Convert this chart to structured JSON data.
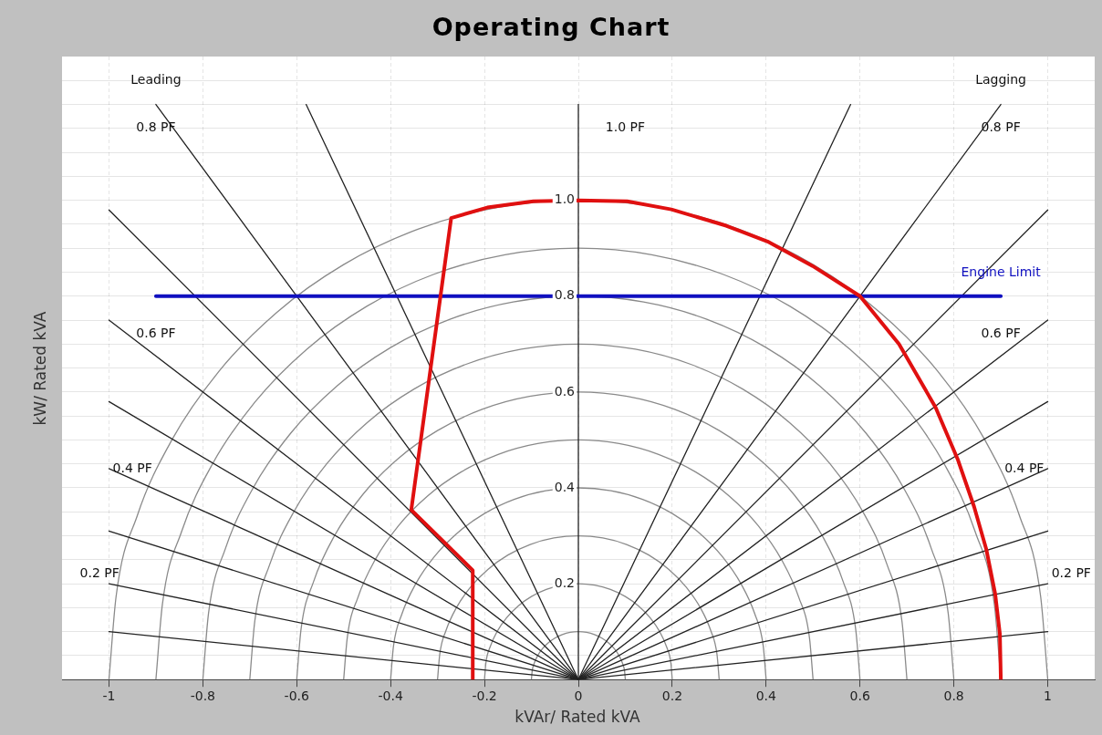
{
  "chart_data": {
    "type": "line",
    "title": "Operating Chart",
    "xlabel": "kVAr/ Rated kVA",
    "ylabel": "kW/ Rated kVA",
    "xlim": [
      -1.1,
      1.1
    ],
    "ylim": [
      0,
      1.3
    ],
    "xticks": [
      -1,
      -0.8,
      -0.6,
      -0.4,
      -0.2,
      0,
      0.2,
      0.4,
      0.6,
      0.8,
      1
    ],
    "yticks": [
      {
        "value": 0,
        "label": null
      },
      {
        "value": 0.05,
        "label": null
      },
      {
        "value": 0.1,
        "label": null
      },
      {
        "value": 0.15,
        "label": null
      },
      {
        "value": 0.2,
        "label": "0.2"
      },
      {
        "value": 0.25,
        "label": null
      },
      {
        "value": 0.3,
        "label": null
      },
      {
        "value": 0.35,
        "label": null
      },
      {
        "value": 0.4,
        "label": "0.4"
      },
      {
        "value": 0.45,
        "label": null
      },
      {
        "value": 0.5,
        "label": null
      },
      {
        "value": 0.55,
        "label": null
      },
      {
        "value": 0.6,
        "label": "0.6"
      },
      {
        "value": 0.65,
        "label": null
      },
      {
        "value": 0.7,
        "label": null
      },
      {
        "value": 0.75,
        "label": null
      },
      {
        "value": 0.8,
        "label": "0.8"
      },
      {
        "value": 0.85,
        "label": null
      },
      {
        "value": 0.9,
        "label": null
      },
      {
        "value": 0.95,
        "label": null
      },
      {
        "value": 1,
        "label": "1.0"
      },
      {
        "value": 1.05,
        "label": null
      },
      {
        "value": 1.1,
        "label": null
      },
      {
        "value": 1.15,
        "label": null
      },
      {
        "value": 1.2,
        "label": null
      },
      {
        "value": 1.25,
        "label": null
      }
    ],
    "grid": true,
    "legend": false,
    "marker": "none",
    "series": [
      {
        "color": "#e01010",
        "x": [
          -0.225,
          -0.225,
          -0.356,
          -0.271,
          -0.194,
          -0.096,
          0,
          0.104,
          0.198,
          0.315,
          0.403,
          0.499,
          0.6,
          0.683,
          0.761,
          0.808,
          0.843,
          0.869,
          0.888,
          0.898,
          0.9
        ],
        "values": [
          0,
          0.228,
          0.354,
          0.963,
          0.985,
          0.998,
          1,
          0.998,
          0.981,
          0.947,
          0.914,
          0.863,
          0.8,
          0.7,
          0.568,
          0.46,
          0.361,
          0.272,
          0.179,
          0.095,
          0
        ]
      },
      {
        "name": "Engine Limit",
        "color": "#1010c0",
        "x": [
          -0.9,
          0.9
        ],
        "values": [
          0.8,
          0.8
        ]
      },
      {
        "color": "#222222",
        "x": [
          -1,
          0,
          1
        ],
        "values": [
          0.1,
          0,
          0.1
        ]
      },
      {
        "color": "#222222",
        "x": [
          -1,
          0,
          1
        ],
        "values": [
          0.2,
          0,
          0.2
        ]
      },
      {
        "color": "#222222",
        "x": [
          -1,
          0,
          1
        ],
        "values": [
          0.31,
          0,
          0.31
        ]
      },
      {
        "color": "#222222",
        "x": [
          -1,
          0,
          1
        ],
        "values": [
          0.44,
          0,
          0.44
        ]
      },
      {
        "color": "#222222",
        "x": [
          -1,
          0,
          1
        ],
        "values": [
          0.58,
          0,
          0.58
        ]
      },
      {
        "color": "#222222",
        "x": [
          -1,
          0,
          1
        ],
        "values": [
          0.75,
          0,
          0.75
        ]
      },
      {
        "color": "#222222",
        "x": [
          -1,
          0,
          1
        ],
        "values": [
          0.98,
          0,
          0.98
        ]
      },
      {
        "color": "#222222",
        "x": [
          -0.9,
          0,
          0.9
        ],
        "values": [
          1.2,
          0,
          1.2
        ]
      },
      {
        "color": "#222222",
        "x": [
          -0.58,
          0,
          0.58
        ],
        "values": [
          1.2,
          0,
          1.2
        ]
      },
      {
        "color": "#222222",
        "x": [
          0,
          0
        ],
        "values": [
          0,
          1.2
        ]
      },
      {
        "color": "#8a8a8a",
        "x": [
          0.1,
          0.0985,
          0.094,
          0.0866,
          0.0766,
          0.0643,
          0.05,
          0.0342,
          0.0174,
          0,
          -0.0174,
          -0.0342,
          -0.05,
          -0.0643,
          -0.0766,
          -0.0866,
          -0.094,
          -0.0985,
          -0.1
        ],
        "values": [
          0,
          0.0174,
          0.0342,
          0.05,
          0.0643,
          0.0766,
          0.0866,
          0.094,
          0.0985,
          0.1,
          0.0985,
          0.094,
          0.0866,
          0.0766,
          0.0643,
          0.05,
          0.0342,
          0.0174,
          0
        ]
      },
      {
        "color": "#8a8a8a",
        "x": [
          0.2,
          0.197,
          0.1879,
          0.1732,
          0.1532,
          0.1286,
          0.1,
          0.0684,
          0.0347,
          0,
          -0.0347,
          -0.0684,
          -0.1,
          -0.1286,
          -0.1532,
          -0.1732,
          -0.1879,
          -0.197,
          -0.2
        ],
        "values": [
          0,
          0.0347,
          0.0684,
          0.1,
          0.1286,
          0.1532,
          0.1732,
          0.1879,
          0.197,
          0.2,
          0.197,
          0.1879,
          0.1732,
          0.1532,
          0.1286,
          0.1,
          0.0684,
          0.0347,
          0
        ]
      },
      {
        "color": "#8a8a8a",
        "x": [
          0.3,
          0.2954,
          0.2819,
          0.2598,
          0.2298,
          0.1928,
          0.15,
          0.1026,
          0.0521,
          0,
          -0.0521,
          -0.1026,
          -0.15,
          -0.1928,
          -0.2298,
          -0.2598,
          -0.2819,
          -0.2954,
          -0.3
        ],
        "values": [
          0,
          0.0521,
          0.1026,
          0.15,
          0.1928,
          0.2298,
          0.2598,
          0.2819,
          0.2954,
          0.3,
          0.2954,
          0.2819,
          0.2598,
          0.2298,
          0.1928,
          0.15,
          0.1026,
          0.0521,
          0
        ]
      },
      {
        "color": "#8a8a8a",
        "x": [
          0.4,
          0.3939,
          0.3759,
          0.3464,
          0.3064,
          0.2571,
          0.2,
          0.1368,
          0.0695,
          0,
          -0.0695,
          -0.1368,
          -0.2,
          -0.2571,
          -0.3064,
          -0.3464,
          -0.3759,
          -0.3939,
          -0.4
        ],
        "values": [
          0,
          0.0695,
          0.1368,
          0.2,
          0.2571,
          0.3064,
          0.3464,
          0.3759,
          0.3939,
          0.4,
          0.3939,
          0.3759,
          0.3464,
          0.3064,
          0.2571,
          0.2,
          0.1368,
          0.0695,
          0
        ]
      },
      {
        "color": "#8a8a8a",
        "x": [
          0.5,
          0.4924,
          0.4698,
          0.433,
          0.383,
          0.3214,
          0.25,
          0.171,
          0.0868,
          0,
          -0.0868,
          -0.171,
          -0.25,
          -0.3214,
          -0.383,
          -0.433,
          -0.4698,
          -0.4924,
          -0.5
        ],
        "values": [
          0,
          0.0868,
          0.171,
          0.25,
          0.3214,
          0.383,
          0.433,
          0.4698,
          0.4924,
          0.5,
          0.4924,
          0.4698,
          0.433,
          0.383,
          0.3214,
          0.25,
          0.171,
          0.0868,
          0
        ]
      },
      {
        "color": "#8a8a8a",
        "x": [
          0.6,
          0.5909,
          0.5638,
          0.5196,
          0.4596,
          0.3857,
          0.3,
          0.2052,
          0.1042,
          0,
          -0.1042,
          -0.2052,
          -0.3,
          -0.3857,
          -0.4596,
          -0.5196,
          -0.5638,
          -0.5909,
          -0.6
        ],
        "values": [
          0,
          0.1042,
          0.2052,
          0.3,
          0.3857,
          0.4596,
          0.5196,
          0.5638,
          0.5909,
          0.6,
          0.5909,
          0.5638,
          0.5196,
          0.4596,
          0.3857,
          0.3,
          0.2052,
          0.1042,
          0
        ]
      },
      {
        "color": "#8a8a8a",
        "x": [
          0.7,
          0.6894,
          0.6578,
          0.6062,
          0.5362,
          0.45,
          0.35,
          0.2394,
          0.1215,
          0,
          -0.1215,
          -0.2394,
          -0.35,
          -0.45,
          -0.5362,
          -0.6062,
          -0.6578,
          -0.6894,
          -0.7
        ],
        "values": [
          0,
          0.1215,
          0.2394,
          0.35,
          0.45,
          0.5362,
          0.6062,
          0.6578,
          0.6894,
          0.7,
          0.6894,
          0.6578,
          0.6062,
          0.5362,
          0.45,
          0.35,
          0.2394,
          0.1215,
          0
        ]
      },
      {
        "color": "#8a8a8a",
        "x": [
          0.8,
          0.7878,
          0.7518,
          0.6928,
          0.6128,
          0.5142,
          0.4,
          0.2736,
          0.1389,
          0,
          -0.1389,
          -0.2736,
          -0.4,
          -0.5142,
          -0.6128,
          -0.6928,
          -0.7518,
          -0.7878,
          -0.8
        ],
        "values": [
          0,
          0.1389,
          0.2736,
          0.4,
          0.5142,
          0.6128,
          0.6928,
          0.7518,
          0.7878,
          0.8,
          0.7878,
          0.7518,
          0.6928,
          0.6128,
          0.5142,
          0.4,
          0.2736,
          0.1389,
          0
        ]
      },
      {
        "color": "#8a8a8a",
        "x": [
          0.9,
          0.8863,
          0.8457,
          0.7794,
          0.6894,
          0.5785,
          0.45,
          0.3078,
          0.1562,
          0,
          -0.1562,
          -0.3078,
          -0.45,
          -0.5785,
          -0.6894,
          -0.7794,
          -0.8457,
          -0.8863,
          -0.9
        ],
        "values": [
          0,
          0.1562,
          0.3078,
          0.45,
          0.5785,
          0.6894,
          0.7794,
          0.8457,
          0.8863,
          0.9,
          0.8863,
          0.8457,
          0.7794,
          0.6894,
          0.5785,
          0.45,
          0.3078,
          0.1562,
          0
        ]
      },
      {
        "color": "#8a8a8a",
        "x": [
          1,
          0.9848,
          0.9397,
          0.866,
          0.766,
          0.6428,
          0.5,
          0.342,
          0.1736,
          0,
          -0.1736,
          -0.342,
          -0.5,
          -0.6428,
          -0.766,
          -0.866,
          -0.9397,
          -0.9848,
          -1
        ],
        "values": [
          0,
          0.1736,
          0.342,
          0.5,
          0.6428,
          0.766,
          0.866,
          0.9397,
          0.9848,
          1,
          0.9848,
          0.9397,
          0.866,
          0.766,
          0.6428,
          0.5,
          0.342,
          0.1736,
          0
        ]
      }
    ],
    "annotations": [
      "Leading",
      "Lagging",
      "0.8 PF",
      "1.0 PF",
      "0.8 PF",
      "0.6 PF",
      "0.6 PF",
      "0.4 PF",
      "0.4 PF",
      "0.2 PF",
      "0.2 PF"
    ]
  }
}
